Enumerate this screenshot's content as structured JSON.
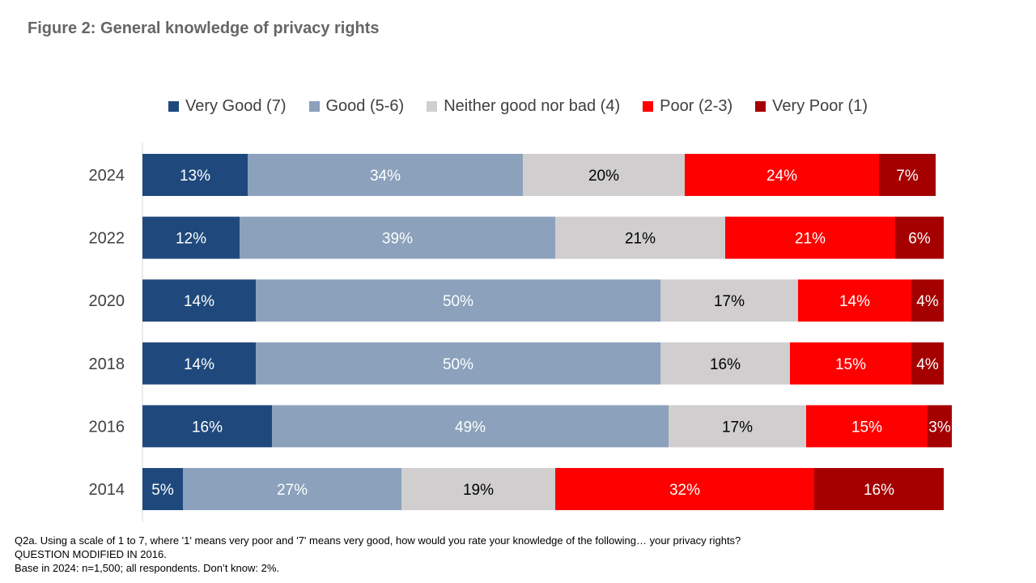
{
  "title": "Figure 2: General knowledge of privacy rights",
  "chart_data": {
    "type": "bar",
    "orientation": "horizontal",
    "stacked": true,
    "categories": [
      "2024",
      "2022",
      "2020",
      "2018",
      "2016",
      "2014"
    ],
    "series": [
      {
        "name": "Very Good (7)",
        "color": "#1f497d",
        "label_color": "#ffffff",
        "values": [
          13,
          12,
          14,
          14,
          16,
          5
        ]
      },
      {
        "name": "Good (5-6)",
        "color": "#8ba1bc",
        "label_color": "#ffffff",
        "values": [
          34,
          39,
          50,
          50,
          49,
          27
        ]
      },
      {
        "name": "Neither good nor bad (4)",
        "color": "#d0cece",
        "label_color": "#000000",
        "values": [
          20,
          21,
          17,
          16,
          17,
          19
        ]
      },
      {
        "name": "Poor (2-3)",
        "color": "#ff0000",
        "label_color": "#ffffff",
        "values": [
          24,
          21,
          14,
          15,
          15,
          32
        ]
      },
      {
        "name": "Very Poor (1)",
        "color": "#a50000",
        "label_color": "#ffffff",
        "values": [
          7,
          6,
          4,
          4,
          3,
          16
        ]
      }
    ],
    "xlim": [
      0,
      100
    ],
    "grid": false,
    "legend": "top",
    "value_suffix": "%"
  },
  "footnote": {
    "line1": "Q2a. Using a scale of 1 to 7, where '1' means very poor and '7' means very good, how would you rate your knowledge of the following… your privacy rights?",
    "line2": "QUESTION MODIFIED IN 2016.",
    "line3": "Base in 2024: n=1,500; all respondents. Don’t know: 2%."
  }
}
